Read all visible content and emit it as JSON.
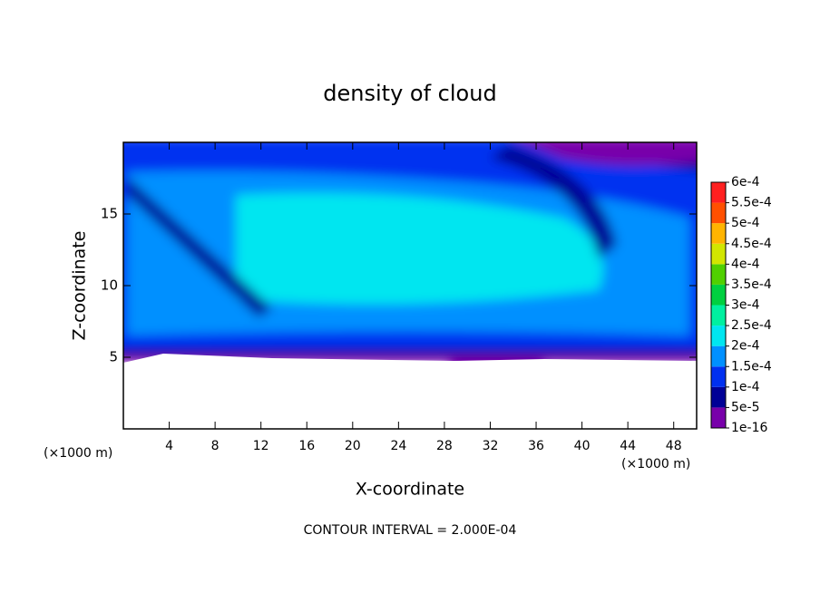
{
  "chart_data": {
    "type": "contour",
    "title": "density of cloud",
    "x_label": "X-coordinate",
    "y_label": "Z-coordinate",
    "x_unit_left": "(×1000 m)",
    "x_unit_right": "(×1000 m)",
    "footer": "CONTOUR INTERVAL = 2.000E-04",
    "xlim": [
      0,
      50
    ],
    "ylim": [
      0,
      20
    ],
    "xticks": [
      4,
      8,
      12,
      16,
      20,
      24,
      28,
      32,
      36,
      40,
      44,
      48
    ],
    "yticks": [
      5,
      10,
      15
    ],
    "colorbar": {
      "levels": [
        {
          "value": 1e-16,
          "label": "1e-16"
        },
        {
          "value": 5e-05,
          "label": "5e-5"
        },
        {
          "value": 0.0001,
          "label": "1e-4"
        },
        {
          "value": 0.00015,
          "label": "1.5e-4"
        },
        {
          "value": 0.0002,
          "label": "2e-4"
        },
        {
          "value": 0.00025,
          "label": "2.5e-4"
        },
        {
          "value": 0.0003,
          "label": "3e-4"
        },
        {
          "value": 0.00035,
          "label": "3.5e-4"
        },
        {
          "value": 0.0004,
          "label": "4e-4"
        },
        {
          "value": 0.00045,
          "label": "4.5e-4"
        },
        {
          "value": 0.0005,
          "label": "5e-4"
        },
        {
          "value": 0.00055,
          "label": "5.5e-4"
        },
        {
          "value": 0.0006,
          "label": "6e-4"
        }
      ],
      "colors": [
        "#7800aa",
        "#000096",
        "#0030f0",
        "#0090ff",
        "#00e6f0",
        "#00f0a0",
        "#00d040",
        "#50d000",
        "#d2e600",
        "#ffb400",
        "#ff5000",
        "#ff2020"
      ]
    }
  }
}
